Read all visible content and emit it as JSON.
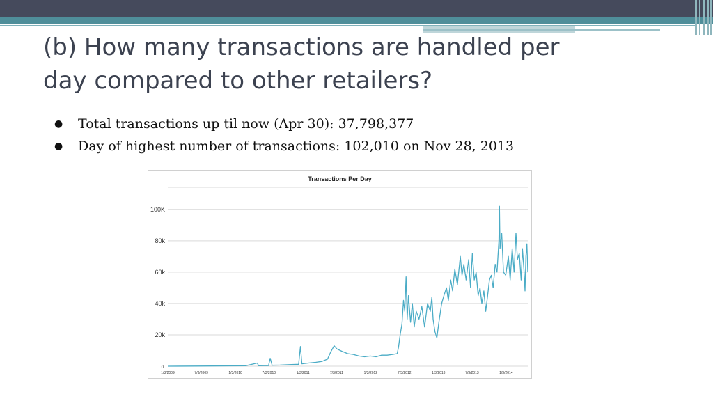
{
  "slide": {
    "title_line1": "(b) How many transactions are handled per",
    "title_line2": "day compared to other retailers?",
    "bullets": [
      {
        "symbol": "●",
        "text": "Total transactions up til now (Apr 30): 37,798,377"
      },
      {
        "symbol": "●",
        "text": "Day of highest number of transactions: 102,010 on Nov 28, 2013"
      }
    ]
  },
  "colors": {
    "header": "#454a5c",
    "teal": "#4f8e9a",
    "series": "#4bacc6",
    "grid": "#d9d9d9",
    "title_text": "#3c4250"
  },
  "chart_data": {
    "type": "line",
    "title": "Transactions Per Day",
    "xlabel": "",
    "ylabel": "",
    "x_tick_labels": [
      "1/3/2009",
      "7/3/2009",
      "1/3/2010",
      "7/3/2010",
      "1/3/2011",
      "7/3/2011",
      "1/3/2012",
      "7/3/2012",
      "1/3/2013",
      "7/3/2013",
      "1/3/2014"
    ],
    "y_ticks": [
      0,
      20000,
      40000,
      60000,
      80000,
      100000
    ],
    "y_tick_labels": [
      "0",
      "20k",
      "40k",
      "60k",
      "80k",
      "100K"
    ],
    "ylim": [
      0,
      115000
    ],
    "xlim": [
      "2009-01-03",
      "2014-04-30"
    ],
    "grid": true,
    "series": [
      {
        "points": [
          [
            "2009-01-03",
            0
          ],
          [
            "2009-06-01",
            100
          ],
          [
            "2009-12-01",
            200
          ],
          [
            "2010-03-01",
            300
          ],
          [
            "2010-05-01",
            2000
          ],
          [
            "2010-05-08",
            300
          ],
          [
            "2010-07-01",
            400
          ],
          [
            "2010-07-10",
            5000
          ],
          [
            "2010-07-20",
            600
          ],
          [
            "2010-09-01",
            700
          ],
          [
            "2010-11-01",
            1000
          ],
          [
            "2010-12-10",
            1200
          ],
          [
            "2010-12-20",
            12500
          ],
          [
            "2010-12-28",
            1500
          ],
          [
            "2011-02-01",
            2000
          ],
          [
            "2011-03-15",
            2500
          ],
          [
            "2011-04-15",
            3000
          ],
          [
            "2011-05-15",
            4500
          ],
          [
            "2011-06-01",
            9000
          ],
          [
            "2011-06-20",
            13000
          ],
          [
            "2011-07-05",
            11000
          ],
          [
            "2011-08-01",
            9500
          ],
          [
            "2011-09-01",
            8000
          ],
          [
            "2011-10-01",
            7500
          ],
          [
            "2011-11-01",
            6500
          ],
          [
            "2011-12-01",
            6000
          ],
          [
            "2012-01-01",
            6500
          ],
          [
            "2012-02-01",
            6000
          ],
          [
            "2012-03-01",
            7000
          ],
          [
            "2012-04-01",
            7000
          ],
          [
            "2012-05-01",
            7500
          ],
          [
            "2012-05-25",
            8000
          ],
          [
            "2012-06-01",
            12000
          ],
          [
            "2012-06-10",
            20000
          ],
          [
            "2012-06-20",
            27000
          ],
          [
            "2012-06-28",
            42000
          ],
          [
            "2012-07-05",
            35000
          ],
          [
            "2012-07-12",
            57000
          ],
          [
            "2012-07-18",
            30000
          ],
          [
            "2012-07-25",
            45000
          ],
          [
            "2012-08-05",
            28000
          ],
          [
            "2012-08-15",
            40000
          ],
          [
            "2012-08-25",
            25000
          ],
          [
            "2012-09-05",
            35000
          ],
          [
            "2012-09-20",
            30000
          ],
          [
            "2012-10-05",
            38000
          ],
          [
            "2012-10-20",
            25000
          ],
          [
            "2012-11-05",
            40000
          ],
          [
            "2012-11-20",
            35000
          ],
          [
            "2012-11-28",
            44000
          ],
          [
            "2012-12-05",
            30000
          ],
          [
            "2012-12-15",
            22000
          ],
          [
            "2012-12-25",
            18000
          ],
          [
            "2013-01-05",
            28000
          ],
          [
            "2013-01-20",
            40000
          ],
          [
            "2013-02-01",
            45000
          ],
          [
            "2013-02-15",
            50000
          ],
          [
            "2013-02-25",
            42000
          ],
          [
            "2013-03-10",
            55000
          ],
          [
            "2013-03-20",
            48000
          ],
          [
            "2013-04-01",
            62000
          ],
          [
            "2013-04-15",
            52000
          ],
          [
            "2013-05-01",
            70000
          ],
          [
            "2013-05-10",
            58000
          ],
          [
            "2013-05-20",
            65000
          ],
          [
            "2013-06-01",
            55000
          ],
          [
            "2013-06-15",
            68000
          ],
          [
            "2013-06-25",
            50000
          ],
          [
            "2013-07-05",
            72000
          ],
          [
            "2013-07-15",
            55000
          ],
          [
            "2013-07-25",
            60000
          ],
          [
            "2013-08-05",
            45000
          ],
          [
            "2013-08-15",
            50000
          ],
          [
            "2013-08-25",
            40000
          ],
          [
            "2013-09-05",
            48000
          ],
          [
            "2013-09-15",
            35000
          ],
          [
            "2013-09-25",
            45000
          ],
          [
            "2013-10-05",
            55000
          ],
          [
            "2013-10-15",
            58000
          ],
          [
            "2013-10-25",
            50000
          ],
          [
            "2013-11-05",
            65000
          ],
          [
            "2013-11-15",
            60000
          ],
          [
            "2013-11-25",
            80000
          ],
          [
            "2013-11-28",
            102010
          ],
          [
            "2013-12-01",
            75000
          ],
          [
            "2013-12-10",
            85000
          ],
          [
            "2013-12-20",
            60000
          ],
          [
            "2014-01-01",
            58000
          ],
          [
            "2014-01-15",
            70000
          ],
          [
            "2014-01-25",
            55000
          ],
          [
            "2014-02-05",
            75000
          ],
          [
            "2014-02-15",
            60000
          ],
          [
            "2014-02-25",
            85000
          ],
          [
            "2014-03-05",
            68000
          ],
          [
            "2014-03-15",
            72000
          ],
          [
            "2014-03-25",
            55000
          ],
          [
            "2014-04-01",
            75000
          ],
          [
            "2014-04-10",
            60000
          ],
          [
            "2014-04-15",
            48000
          ],
          [
            "2014-04-20",
            70000
          ],
          [
            "2014-04-25",
            78000
          ],
          [
            "2014-04-30",
            60000
          ]
        ]
      }
    ]
  }
}
